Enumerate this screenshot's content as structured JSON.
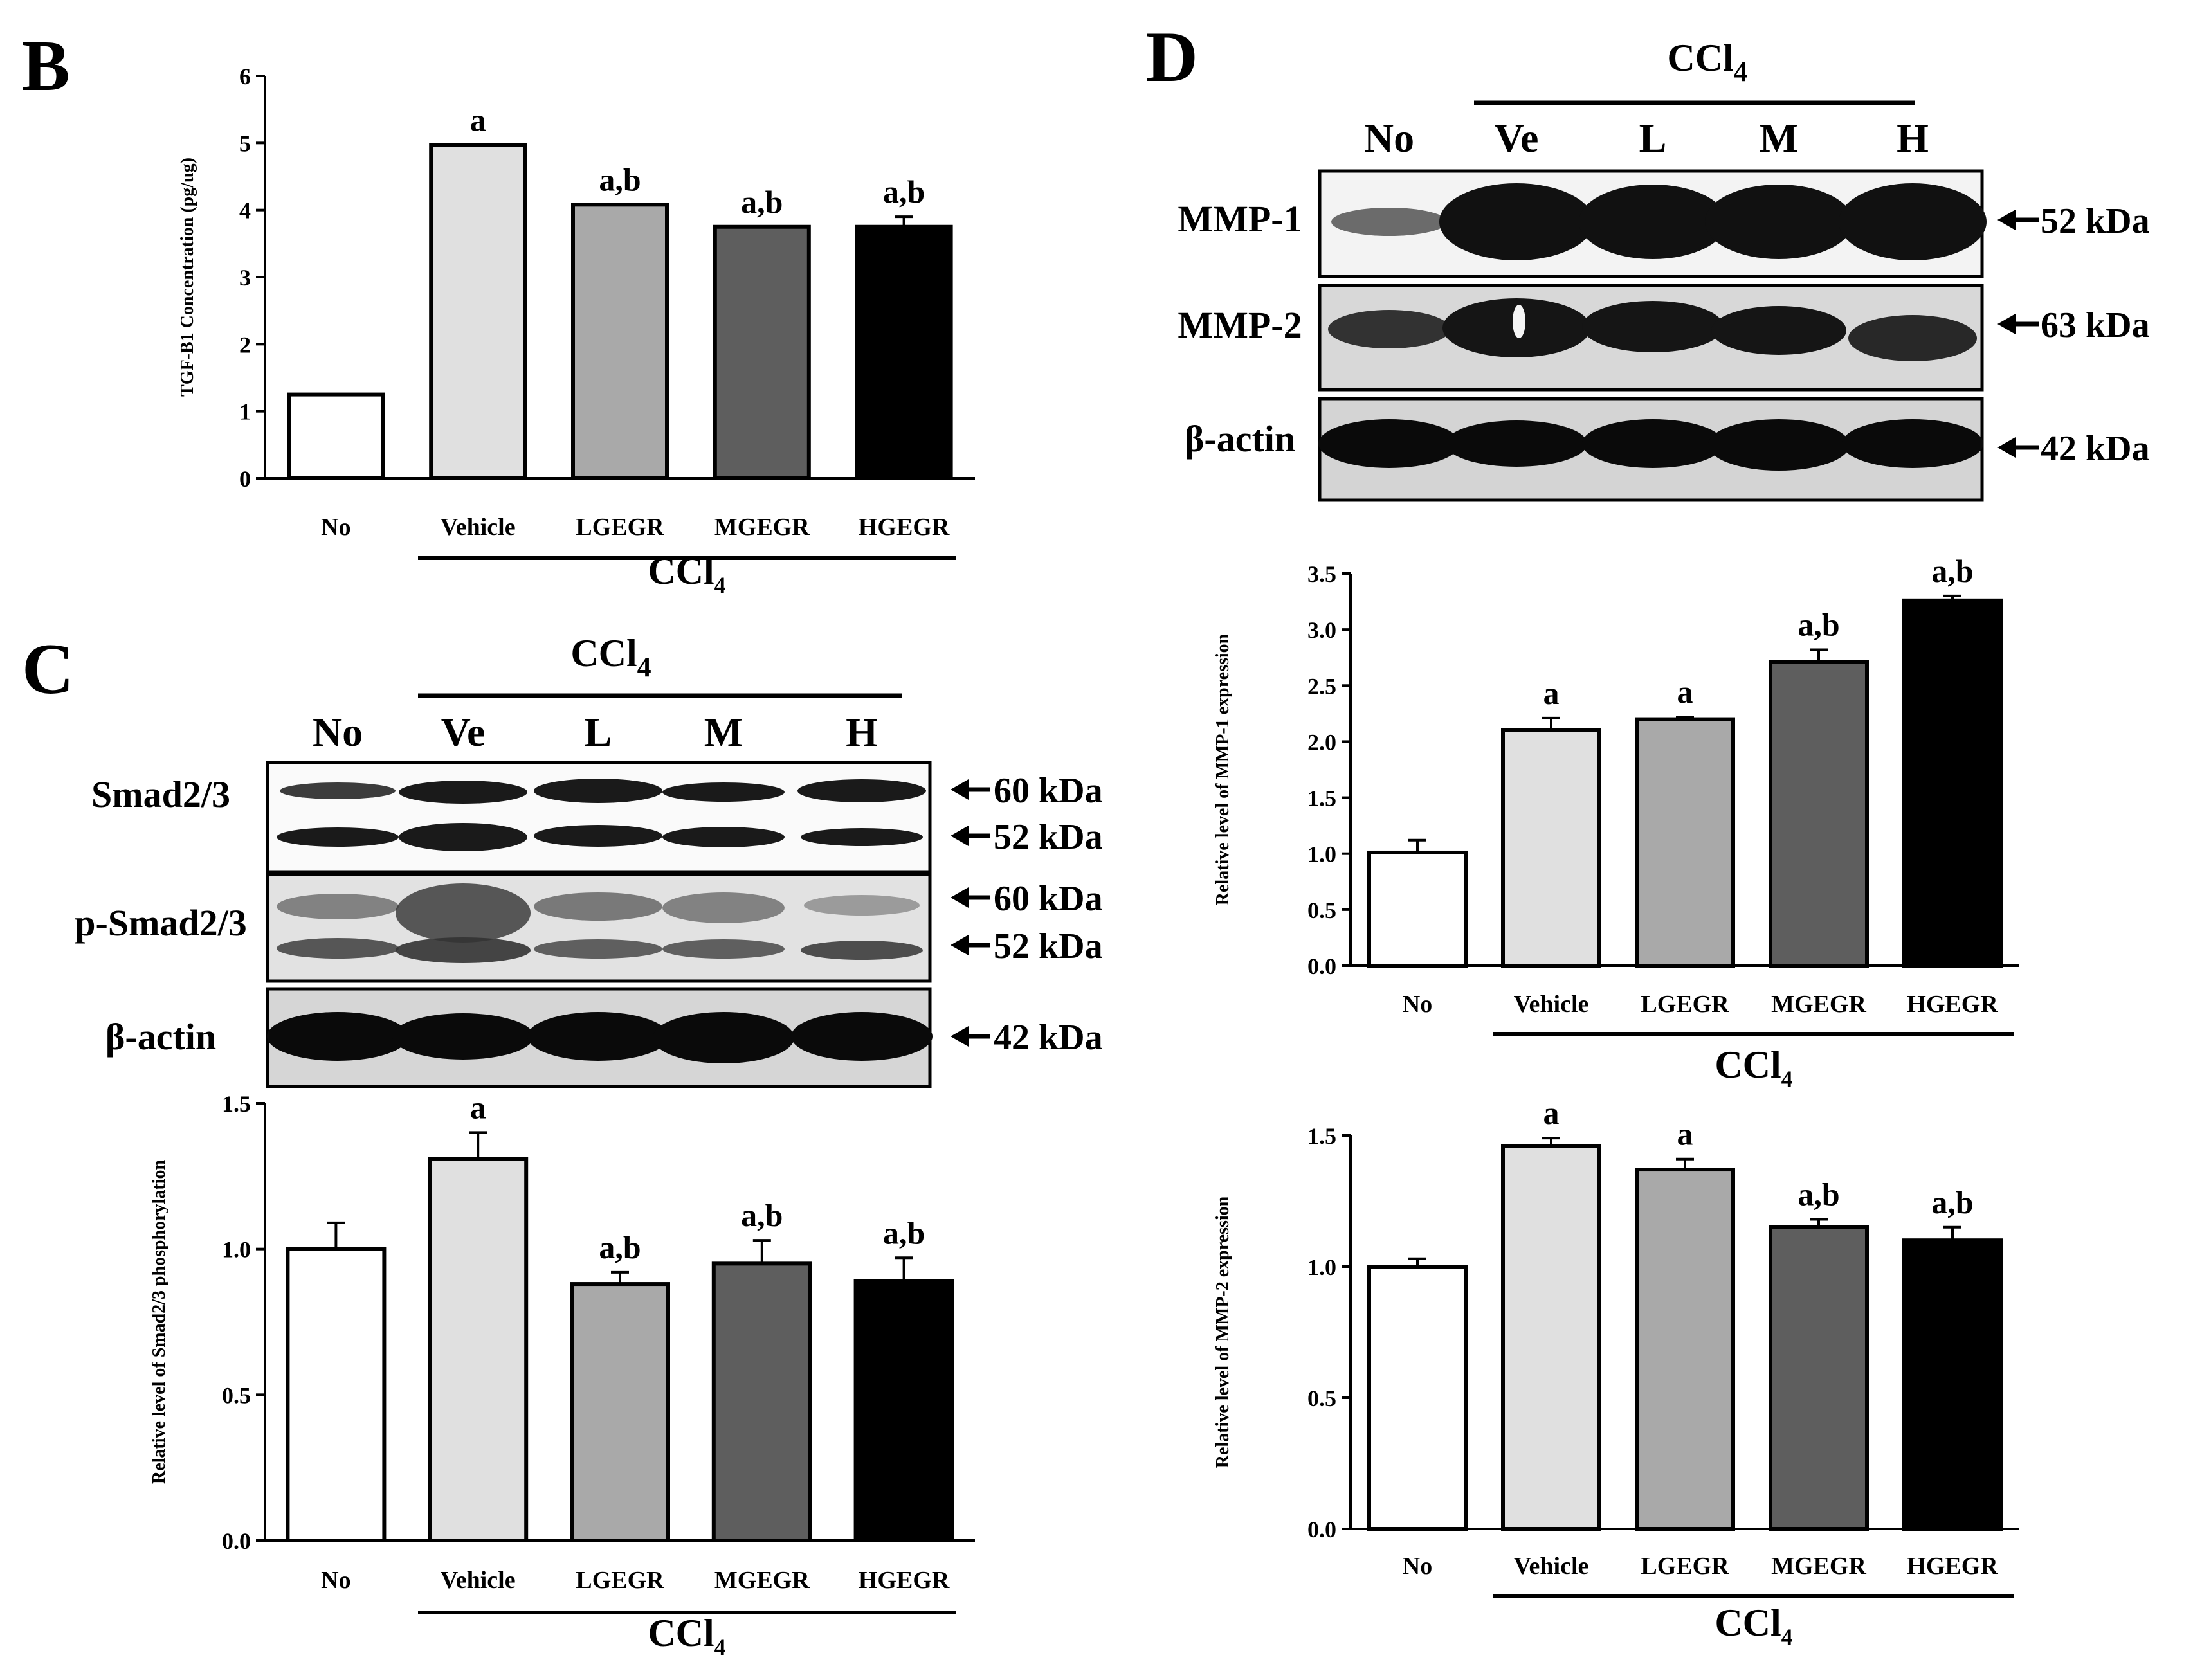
{
  "panels": {
    "B": {
      "letter": "B"
    },
    "C": {
      "letter": "C"
    },
    "D": {
      "letter": "D"
    }
  },
  "blots": {
    "C": {
      "treatment": "CCl",
      "treatment_sub": "4",
      "lanes": [
        "No",
        "Ve",
        "L",
        "M",
        "H"
      ],
      "rows": [
        {
          "name": "Smad2/3",
          "markers": [
            "60 kDa",
            "52 kDa"
          ]
        },
        {
          "name": "p-Smad2/3",
          "markers": [
            "60 kDa",
            "52 kDa"
          ]
        },
        {
          "name": "β-actin",
          "markers": [
            "42 kDa"
          ]
        }
      ]
    },
    "D": {
      "treatment": "CCl",
      "treatment_sub": "4",
      "lanes": [
        "No",
        "Ve",
        "L",
        "M",
        "H"
      ],
      "rows": [
        {
          "name": "MMP-1",
          "markers": [
            "52 kDa"
          ]
        },
        {
          "name": "MMP-2",
          "markers": [
            "63 kDa"
          ]
        },
        {
          "name": "β-actin",
          "markers": [
            "42 kDa"
          ]
        }
      ]
    }
  },
  "chart_data": [
    {
      "id": "B",
      "type": "bar",
      "title": "",
      "ylabel": "TGF-B1 Concentration (pg/ug)",
      "categories": [
        "No",
        "Vehicle",
        "LGEGR",
        "MGEGR",
        "HGEGR"
      ],
      "values": [
        1.25,
        4.97,
        4.08,
        3.75,
        3.75
      ],
      "errors": [
        0,
        0,
        0,
        0,
        0.15
      ],
      "significance": [
        "",
        "a",
        "a,b",
        "a,b",
        "a,b"
      ],
      "ylim": [
        0,
        6
      ],
      "yticks": [
        "0",
        "1",
        "2",
        "3",
        "4",
        "5",
        "6"
      ],
      "group_label": "CCl",
      "group_label_sub": "4",
      "fills": [
        "#ffffff",
        "#e0e0e0",
        "#a9a9a9",
        "#5e5e5e",
        "#000000"
      ]
    },
    {
      "id": "C",
      "type": "bar",
      "title": "",
      "ylabel": "Relative level of Smad2/3 phosphorylation",
      "categories": [
        "No",
        "Vehicle",
        "LGEGR",
        "MGEGR",
        "HGEGR"
      ],
      "values": [
        1.0,
        1.31,
        0.88,
        0.95,
        0.89
      ],
      "errors": [
        0.09,
        0.09,
        0.04,
        0.08,
        0.08
      ],
      "significance": [
        "",
        "a",
        "a,b",
        "a,b",
        "a,b"
      ],
      "ylim": [
        0,
        1.5
      ],
      "yticks": [
        "0.0",
        "0.5",
        "1.0",
        "1.5"
      ],
      "group_label": "CCl",
      "group_label_sub": "4",
      "fills": [
        "#ffffff",
        "#e0e0e0",
        "#a9a9a9",
        "#5e5e5e",
        "#000000"
      ]
    },
    {
      "id": "D1",
      "type": "bar",
      "title": "",
      "ylabel": "Relative level of MMP-1 expression",
      "categories": [
        "No",
        "Vehicle",
        "LGEGR",
        "MGEGR",
        "HGEGR"
      ],
      "values": [
        1.01,
        2.1,
        2.2,
        2.71,
        3.26
      ],
      "errors": [
        0.11,
        0.11,
        0.02,
        0.11,
        0.04
      ],
      "significance": [
        "",
        "a",
        "a",
        "a,b",
        "a,b"
      ],
      "ylim": [
        0,
        3.5
      ],
      "yticks": [
        "0.0",
        "0.5",
        "1.0",
        "1.5",
        "2.0",
        "2.5",
        "3.0",
        "3.5"
      ],
      "group_label": "CCl",
      "group_label_sub": "4",
      "fills": [
        "#ffffff",
        "#e0e0e0",
        "#a9a9a9",
        "#5e5e5e",
        "#000000"
      ]
    },
    {
      "id": "D2",
      "type": "bar",
      "title": "",
      "ylabel": "Relative level of MMP-2 expression",
      "categories": [
        "No",
        "Vehicle",
        "LGEGR",
        "MGEGR",
        "HGEGR"
      ],
      "values": [
        1.0,
        1.46,
        1.37,
        1.15,
        1.1
      ],
      "errors": [
        0.03,
        0.03,
        0.04,
        0.03,
        0.05
      ],
      "significance": [
        "",
        "a",
        "a",
        "a,b",
        "a,b"
      ],
      "ylim": [
        0,
        1.5
      ],
      "yticks": [
        "0.0",
        "0.5",
        "1.0",
        "1.5"
      ],
      "group_label": "CCl",
      "group_label_sub": "4",
      "fills": [
        "#ffffff",
        "#e0e0e0",
        "#a9a9a9",
        "#5e5e5e",
        "#000000"
      ]
    }
  ]
}
